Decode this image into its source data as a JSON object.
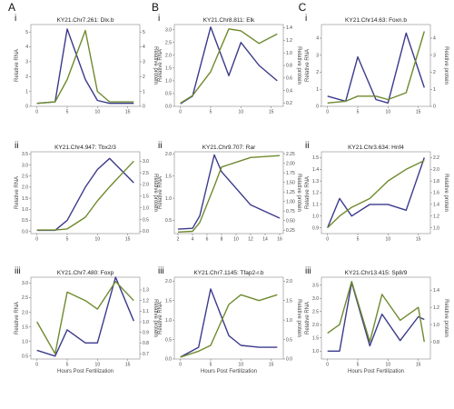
{
  "colors": {
    "rna": "#3b3a8c",
    "protein": "#6e8a2e"
  },
  "column_labels": [
    "A",
    "B",
    "C"
  ],
  "xlabel": "Hours Post Fertilization",
  "chart_data": [
    {
      "type": "line",
      "col": 0,
      "row": 0,
      "roman": "i",
      "title": "KY21.Chr7.261: Dlx.b",
      "ylabel_left": "Relative RNA",
      "ylabel_right": "Relative protein",
      "x": [
        0,
        3,
        5,
        8,
        10,
        12,
        16
      ],
      "xticks": [
        0,
        5,
        10,
        15
      ],
      "xlim": [
        -1,
        17
      ],
      "ylim_left": [
        0,
        5.5
      ],
      "yticks_left": [
        0,
        1,
        2,
        3,
        4,
        5
      ],
      "ylim_right": [
        0,
        5.5
      ],
      "yticks_right": [
        0,
        1,
        2,
        3,
        4,
        5
      ],
      "series": [
        {
          "values": [
            0.2,
            0.3,
            5.2,
            1.8,
            0.4,
            0.2,
            0.2
          ]
        },
        {
          "values": [
            0.2,
            0.3,
            1.8,
            5.1,
            1.0,
            0.3,
            0.3
          ]
        }
      ]
    },
    {
      "type": "line",
      "col": 1,
      "row": 0,
      "roman": "i",
      "title": "KY21.Chr8.811: Elk",
      "ylabel_left": "Relative RNA",
      "ylabel_right": "Relative protein",
      "x": [
        0,
        2,
        5,
        8,
        10,
        13,
        16
      ],
      "xticks": [
        0,
        5,
        10,
        15
      ],
      "xlim": [
        -1,
        17
      ],
      "ylim_left": [
        0,
        3.2
      ],
      "yticks_left": [
        0.0,
        0.5,
        1.0,
        1.5,
        2.0,
        2.5,
        3.0
      ],
      "ylim_right": [
        0.15,
        1.45
      ],
      "yticks_right": [
        0.2,
        0.4,
        0.6,
        0.8,
        1.0,
        1.2,
        1.4
      ],
      "series": [
        {
          "values": [
            0.1,
            0.4,
            3.1,
            1.2,
            2.5,
            1.6,
            1.0
          ]
        },
        {
          "values": [
            0.2,
            0.32,
            0.7,
            1.38,
            1.35,
            1.15,
            1.3
          ]
        }
      ]
    },
    {
      "type": "line",
      "col": 2,
      "row": 0,
      "roman": "i",
      "title": "KY21.Chr14.63: Foxn.b",
      "ylabel_left": "Relative RNA",
      "ylabel_right": "Relative protein",
      "x": [
        0,
        3,
        5,
        8,
        10,
        13,
        16
      ],
      "xticks": [
        0,
        5,
        10,
        15
      ],
      "xlim": [
        -1,
        17
      ],
      "ylim_left": [
        0,
        4.8
      ],
      "yticks_left": [
        0,
        1,
        2,
        3,
        4
      ],
      "ylim_right": [
        0,
        4.8
      ],
      "yticks_right": [
        0,
        1,
        2,
        3,
        4
      ],
      "series": [
        {
          "values": [
            0.6,
            0.3,
            2.9,
            0.4,
            0.2,
            4.3,
            1.1
          ]
        },
        {
          "values": [
            0.2,
            0.3,
            0.6,
            0.6,
            0.4,
            0.8,
            4.4
          ]
        }
      ]
    },
    {
      "type": "line",
      "col": 0,
      "row": 1,
      "roman": "ii",
      "title": "KY21.Chr4.947: Tbx2/3",
      "ylabel_left": "Relative RNA",
      "ylabel_right": "Relative protein",
      "x": [
        0,
        3,
        5,
        8,
        10,
        12,
        16
      ],
      "xticks": [
        0,
        5,
        10,
        15
      ],
      "xlim": [
        -1,
        17
      ],
      "ylim_left": [
        -0.1,
        3.6
      ],
      "yticks_left": [
        0.0,
        0.5,
        1.0,
        1.5,
        2.0,
        2.5,
        3.0,
        3.5
      ],
      "ylim_right": [
        -0.1,
        3.4
      ],
      "yticks_right": [
        0.0,
        0.5,
        1.0,
        1.5,
        2.0,
        2.5,
        3.0
      ],
      "series": [
        {
          "values": [
            0.05,
            0.05,
            0.5,
            2.0,
            2.8,
            3.3,
            2.2
          ]
        },
        {
          "values": [
            0.05,
            0.05,
            0.1,
            0.6,
            1.3,
            1.9,
            3.0
          ]
        }
      ]
    },
    {
      "type": "line",
      "col": 1,
      "row": 1,
      "roman": "ii",
      "title": "KY21.Chr9.707: Rar",
      "ylabel_left": "Relative RNA",
      "ylabel_right": "Relative protein",
      "x": [
        2,
        4,
        5,
        7,
        8,
        12,
        16
      ],
      "xticks": [
        2,
        4,
        6,
        8,
        10,
        12,
        14,
        16
      ],
      "xlim": [
        1.5,
        16.5
      ],
      "ylim_left": [
        0.2,
        2.05
      ],
      "yticks_left": [
        0.5,
        1.0,
        1.5,
        2.0
      ],
      "ylim_right": [
        0.16,
        2.3
      ],
      "yticks_right": [
        0.25,
        0.5,
        0.75,
        1.0,
        1.25,
        1.5,
        1.75,
        2.0,
        2.25
      ],
      "series": [
        {
          "values": [
            0.3,
            0.32,
            0.6,
            1.98,
            1.6,
            0.85,
            0.55
          ]
        },
        {
          "values": [
            0.2,
            0.22,
            0.45,
            1.4,
            1.9,
            2.15,
            2.2
          ]
        }
      ]
    },
    {
      "type": "line",
      "col": 2,
      "row": 1,
      "roman": "ii",
      "title": "KY21.Chr3.634: Hnf4",
      "ylabel_left": "Relative RNA",
      "ylabel_right": "Relative protein",
      "x": [
        0,
        2,
        4,
        7,
        10,
        13,
        16
      ],
      "xticks": [
        0,
        5,
        10,
        15
      ],
      "xlim": [
        -1,
        17
      ],
      "ylim_left": [
        0.85,
        1.55
      ],
      "yticks_left": [
        0.9,
        1.0,
        1.1,
        1.2,
        1.3,
        1.4,
        1.5
      ],
      "ylim_right": [
        0.9,
        2.3
      ],
      "yticks_right": [
        1.0,
        1.2,
        1.4,
        1.6,
        1.8,
        2.0,
        2.2
      ],
      "series": [
        {
          "values": [
            0.9,
            1.15,
            1.0,
            1.1,
            1.1,
            1.05,
            1.5
          ]
        },
        {
          "values": [
            1.0,
            1.2,
            1.35,
            1.5,
            1.8,
            2.0,
            2.15
          ]
        }
      ]
    },
    {
      "type": "line",
      "col": 0,
      "row": 2,
      "roman": "iii",
      "title": "KY21.Chr7.480: Foxp",
      "ylabel_left": "Relative RNA",
      "ylabel_right": "Relative protein",
      "x": [
        0,
        3,
        5,
        8,
        10,
        13,
        16
      ],
      "xticks": [
        0,
        5,
        10,
        15
      ],
      "xlim": [
        -1,
        17
      ],
      "ylim_left": [
        0.4,
        3.2
      ],
      "yticks_left": [
        0.5,
        1.0,
        1.5,
        2.0,
        2.5,
        3.0
      ],
      "ylim_right": [
        0.65,
        1.42
      ],
      "yticks_right": [
        0.7,
        0.8,
        0.9,
        1.0,
        1.1,
        1.2,
        1.3
      ],
      "series": [
        {
          "values": [
            0.7,
            0.5,
            1.4,
            0.95,
            0.95,
            3.2,
            1.7
          ]
        },
        {
          "values": [
            1.0,
            0.7,
            1.28,
            1.2,
            1.12,
            1.38,
            1.2
          ]
        }
      ]
    },
    {
      "type": "line",
      "col": 1,
      "row": 2,
      "roman": "iii",
      "title": "KY21.Chr7.1145: Tfap2-r.b",
      "ylabel_left": "Relative RNA",
      "ylabel_right": "Relative protein",
      "x": [
        0,
        3,
        5,
        8,
        10,
        13,
        16
      ],
      "xticks": [
        0,
        5,
        10,
        15
      ],
      "xlim": [
        -1,
        17
      ],
      "ylim_left": [
        0,
        2.1
      ],
      "yticks_left": [
        0.0,
        0.5,
        1.0,
        1.5,
        2.0
      ],
      "ylim_right": [
        0,
        2.1
      ],
      "yticks_right": [
        0.0,
        0.5,
        1.0,
        1.5,
        2.0
      ],
      "series": [
        {
          "values": [
            0.05,
            0.3,
            1.8,
            0.6,
            0.35,
            0.3,
            0.3
          ]
        },
        {
          "values": [
            0.05,
            0.2,
            0.35,
            1.4,
            1.65,
            1.5,
            1.65
          ]
        }
      ]
    },
    {
      "type": "line",
      "col": 2,
      "row": 2,
      "roman": "iii",
      "title": "KY21.Chr13.415: Sp8/9",
      "ylabel_left": "Relative RNA",
      "ylabel_right": "Relative protein",
      "x": [
        0,
        2,
        4,
        7,
        9,
        12,
        15,
        16
      ],
      "xticks": [
        0,
        5,
        10,
        15
      ],
      "xlim": [
        -1,
        17
      ],
      "ylim_left": [
        0.7,
        3.8
      ],
      "yticks_left": [
        1.0,
        1.5,
        2.0,
        2.5,
        3.0,
        3.5
      ],
      "ylim_right": [
        0.6,
        1.55
      ],
      "yticks_right": [
        0.8,
        1.0,
        1.2,
        1.4
      ],
      "series": [
        {
          "values": [
            1.0,
            1.0,
            3.6,
            1.2,
            2.4,
            1.4,
            2.3,
            2.2
          ]
        },
        {
          "values": [
            0.9,
            1.0,
            1.5,
            0.8,
            1.35,
            1.05,
            1.2,
            0.8
          ]
        }
      ]
    }
  ]
}
